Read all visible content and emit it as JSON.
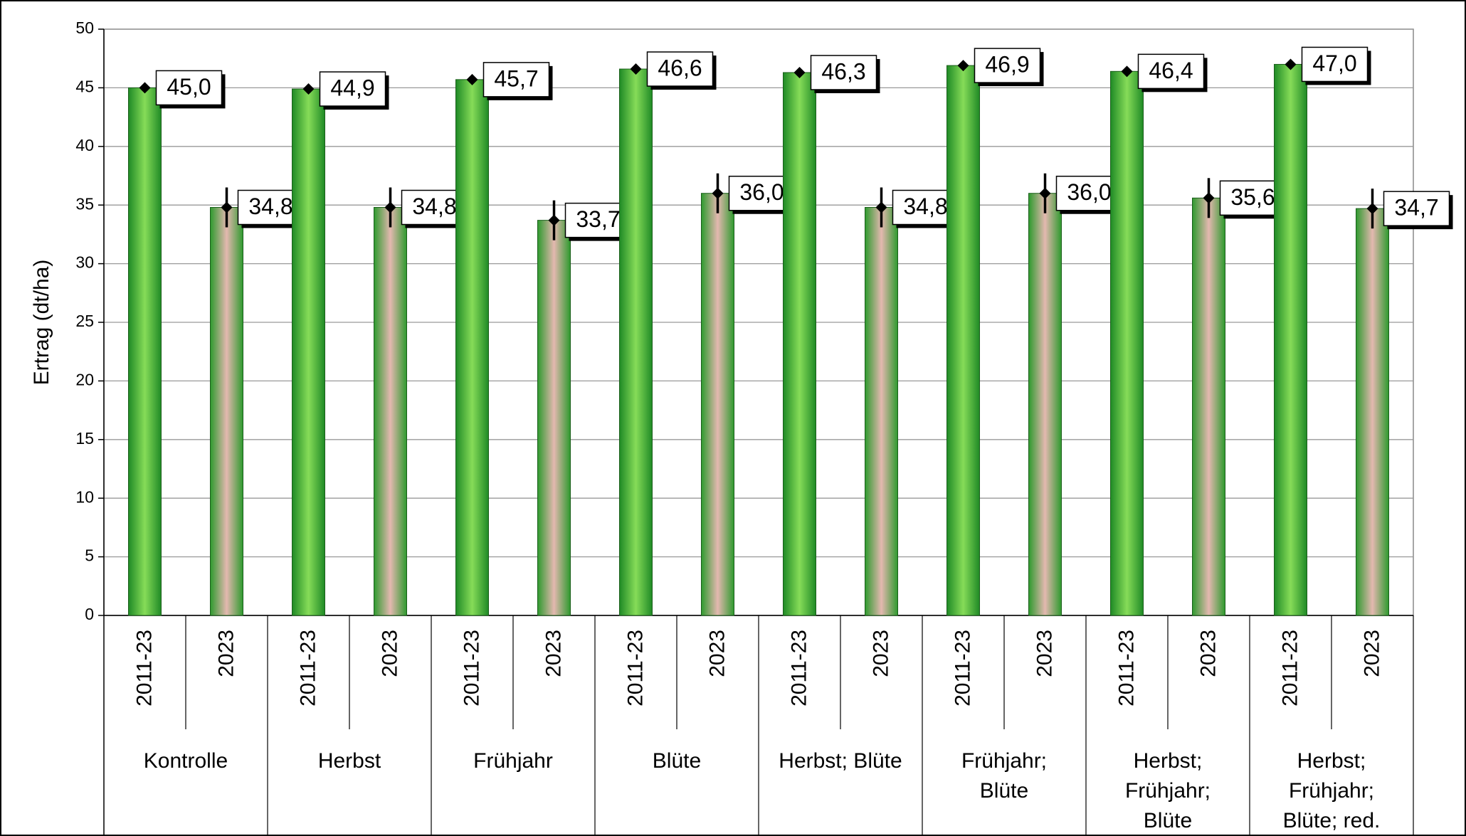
{
  "chart_data": {
    "type": "bar",
    "ylabel": "Ertrag (dt/ha)",
    "groups": [
      [
        "Kontrolle"
      ],
      [
        "Herbst"
      ],
      [
        "Frühjahr"
      ],
      [
        "Blüte"
      ],
      [
        "Herbst; Blüte"
      ],
      [
        "Frühjahr;",
        "Blüte"
      ],
      [
        "Herbst;",
        "Frühjahr;",
        "Blüte"
      ],
      [
        "Herbst;",
        "Frühjahr;",
        "Blüte; red."
      ]
    ],
    "series": [
      {
        "name": "2011-23",
        "color": "#4cc23c",
        "values": [
          45.0,
          44.9,
          45.7,
          46.6,
          46.3,
          46.9,
          46.4,
          47.0
        ],
        "value_labels": [
          "45,0",
          "44,9",
          "45,7",
          "46,6",
          "46,3",
          "46,9",
          "46,4",
          "47,0"
        ]
      },
      {
        "name": "2023",
        "color": "#e4b8b0",
        "values": [
          34.8,
          34.8,
          33.7,
          36.0,
          34.8,
          36.0,
          35.6,
          34.7
        ],
        "value_labels": [
          "34,8",
          "34,8",
          "33,7",
          "36,0",
          "34,8",
          "36,0",
          "35,6",
          "34,7"
        ],
        "errors": [
          1.7,
          1.7,
          1.7,
          1.7,
          1.7,
          1.7,
          1.7,
          1.7
        ]
      }
    ],
    "ylim": [
      0,
      50
    ],
    "yticks": [
      0,
      5,
      10,
      15,
      20,
      25,
      30,
      35,
      40,
      45,
      50
    ],
    "grid": true
  }
}
